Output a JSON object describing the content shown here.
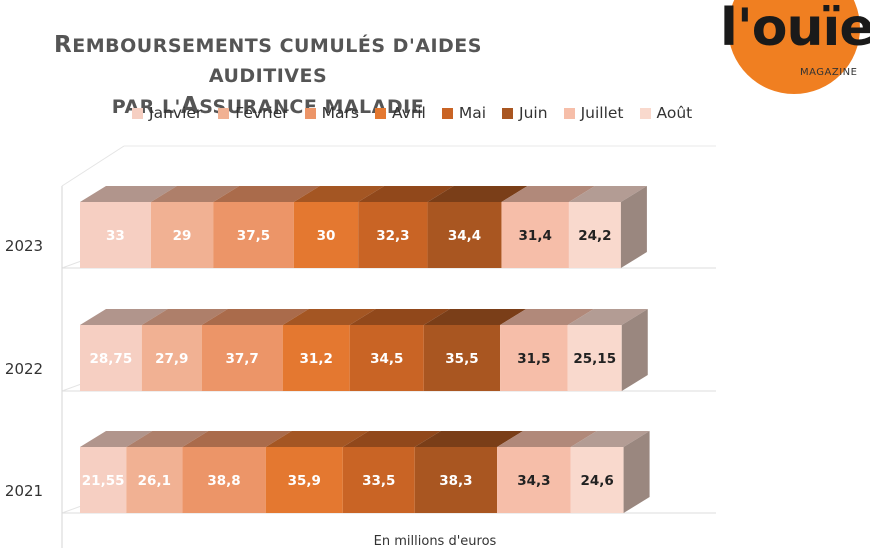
{
  "title": {
    "line1": "Remboursements cumulés d'aides auditives",
    "line2": "par l'Assurance maladie"
  },
  "logo": {
    "word": "l'ouïe",
    "sub": "MAGAZINE"
  },
  "chart_data": {
    "type": "bar",
    "orientation": "horizontal",
    "stacked": true,
    "style": "3d",
    "categories": [
      "2023",
      "2022",
      "2021"
    ],
    "series": [
      {
        "name": "Janvier",
        "values": [
          33,
          28.75,
          21.55
        ],
        "labels": [
          "33",
          "28,75",
          "21,55"
        ],
        "color": "#f6cfc2"
      },
      {
        "name": "Février",
        "values": [
          29,
          27.9,
          26.1
        ],
        "labels": [
          "29",
          "27,9",
          "26,1"
        ],
        "color": "#f1b193"
      },
      {
        "name": "Mars",
        "values": [
          37.5,
          37.7,
          38.8
        ],
        "labels": [
          "37,5",
          "37,7",
          "38,8"
        ],
        "color": "#ec9568"
      },
      {
        "name": "Avril",
        "values": [
          30,
          31.2,
          35.9
        ],
        "labels": [
          "30",
          "31,2",
          "35,9"
        ],
        "color": "#e47830"
      },
      {
        "name": "Mai",
        "values": [
          32.3,
          34.5,
          33.5
        ],
        "labels": [
          "32,3",
          "34,5",
          "33,5"
        ],
        "color": "#c96425"
      },
      {
        "name": "Juin",
        "values": [
          34.4,
          35.5,
          38.3
        ],
        "labels": [
          "34,4",
          "35,5",
          "38,3"
        ],
        "color": "#a95621"
      },
      {
        "name": "Juillet",
        "values": [
          31.4,
          31.5,
          34.3
        ],
        "labels": [
          "31,4",
          "31,5",
          "34,3"
        ],
        "color": "#f6bea9"
      },
      {
        "name": "Août",
        "values": [
          24.2,
          25.15,
          24.6
        ],
        "labels": [
          "24,2",
          "25,15",
          "24,6"
        ],
        "color": "#f9d9cd"
      }
    ],
    "xlabel": "En millions d'euros",
    "legend": "top",
    "grid": true,
    "xlim": [
      0,
      270
    ]
  }
}
